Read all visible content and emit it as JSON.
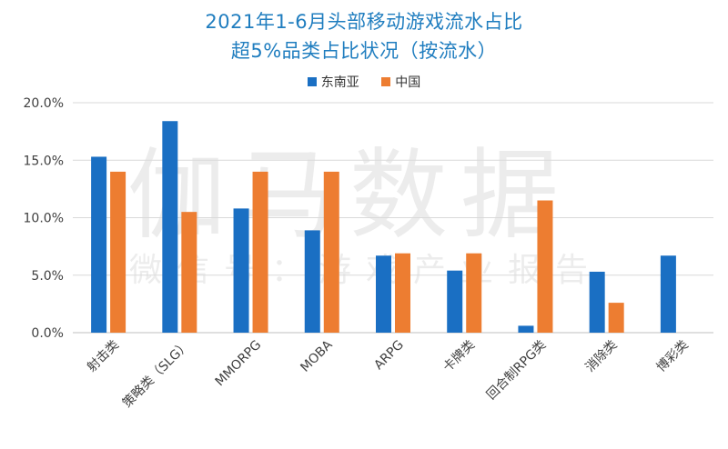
{
  "title_line1": "2021年1-6月头部移动游戏流水占比",
  "title_line2": "超5%品类占比状况（按流水）",
  "watermark_main": "伽马数据",
  "watermark_sub": "微信号：游戏产业报告",
  "colors": {
    "title": "#1f7dbf",
    "sea": "#1a6fc3",
    "china": "#ed7d31",
    "grid": "#d9d9d9",
    "text": "#404040"
  },
  "chart_data": {
    "type": "bar",
    "title": "2021年1-6月头部移动游戏流水占比 超5%品类占比状况（按流水）",
    "categories": [
      "射击类",
      "策略类（SLG）",
      "MMORPG",
      "MOBA",
      "ARPG",
      "卡牌类",
      "回合制RPG类",
      "消除类",
      "博彩类"
    ],
    "series": [
      {
        "name": "东南亚",
        "color": "#1a6fc3",
        "values": [
          15.3,
          18.4,
          10.8,
          8.9,
          6.7,
          5.4,
          0.6,
          5.3,
          6.7
        ]
      },
      {
        "name": "中国",
        "color": "#ed7d31",
        "values": [
          14.0,
          10.5,
          14.0,
          14.0,
          6.9,
          6.9,
          11.5,
          2.6,
          null
        ]
      }
    ],
    "yticks": [
      "0.0%",
      "5.0%",
      "10.0%",
      "15.0%",
      "20.0%"
    ],
    "ylim": [
      0,
      20
    ],
    "grid": true,
    "legend_position": "top-center"
  }
}
